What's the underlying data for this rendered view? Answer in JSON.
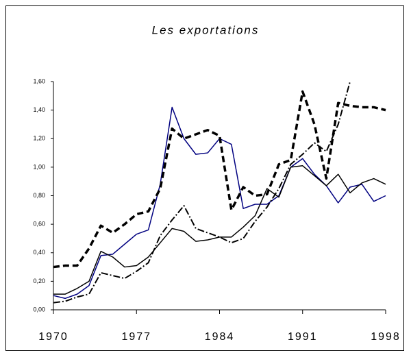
{
  "chart_data": {
    "type": "line",
    "title": "Les exportations",
    "x": [
      1970,
      1971,
      1972,
      1973,
      1974,
      1975,
      1976,
      1977,
      1978,
      1979,
      1980,
      1981,
      1982,
      1983,
      1984,
      1985,
      1986,
      1987,
      1988,
      1989,
      1990,
      1991,
      1992,
      1993,
      1994,
      1995,
      1996,
      1997,
      1998
    ],
    "xlim": [
      1970,
      1998
    ],
    "xticks": [
      1970,
      1977,
      1984,
      1991,
      1998
    ],
    "ylim": [
      0,
      1.6
    ],
    "yticks": [
      {
        "value": 0,
        "label": "0,00"
      },
      {
        "value": 0.2,
        "label": "0,20"
      },
      {
        "value": 0.4,
        "label": "0,40"
      },
      {
        "value": 0.6,
        "label": "0,60"
      },
      {
        "value": 0.8,
        "label": "0,80"
      },
      {
        "value": 1.0,
        "label": "1,00"
      },
      {
        "value": 1.2,
        "label": "1,20"
      },
      {
        "value": 1.4,
        "label": "1,40"
      },
      {
        "value": 1.6,
        "label": "1,60"
      }
    ],
    "grid": false,
    "series": [
      {
        "color": "#000080",
        "width": 1.5,
        "dash": "none",
        "values": [
          0.1,
          0.08,
          0.11,
          0.17,
          0.38,
          0.39,
          0.46,
          0.53,
          0.56,
          0.88,
          1.42,
          1.2,
          1.09,
          1.1,
          1.2,
          1.16,
          0.71,
          0.74,
          0.74,
          0.8,
          1.0,
          1.06,
          0.95,
          0.87,
          0.75,
          0.86,
          0.88,
          0.76,
          0.8
        ]
      },
      {
        "color": "#000000",
        "width": 1.5,
        "dash": "none",
        "values": [
          0.11,
          0.11,
          0.15,
          0.2,
          0.41,
          0.37,
          0.3,
          0.31,
          0.37,
          0.47,
          0.57,
          0.55,
          0.48,
          0.49,
          0.51,
          0.51,
          0.58,
          0.66,
          0.85,
          0.79,
          1.0,
          1.01,
          0.94,
          0.87,
          0.95,
          0.82,
          0.89,
          0.92,
          0.88
        ]
      },
      {
        "color": "#000000",
        "width": 3.5,
        "dash": "9,5",
        "values": [
          0.3,
          0.31,
          0.31,
          0.43,
          0.59,
          0.54,
          0.6,
          0.67,
          0.69,
          0.85,
          1.27,
          1.2,
          1.23,
          1.26,
          1.22,
          0.7,
          0.86,
          0.8,
          0.81,
          1.02,
          1.05,
          1.53,
          1.3,
          0.92,
          1.45,
          1.43,
          1.42,
          1.42,
          1.4
        ]
      },
      {
        "color": "#000000",
        "width": 2,
        "dash": "10,3,2,3",
        "values": [
          0.05,
          0.06,
          0.09,
          0.11,
          0.26,
          0.24,
          0.22,
          0.27,
          0.33,
          0.52,
          0.63,
          0.73,
          0.57,
          0.54,
          0.51,
          0.47,
          0.5,
          0.62,
          0.72,
          0.85,
          1.02,
          1.09,
          1.17,
          1.11,
          1.3,
          1.6,
          null,
          null,
          null
        ]
      }
    ]
  }
}
